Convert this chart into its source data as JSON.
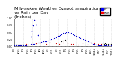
{
  "title": "Milwaukee Weather Evapotranspiration\nvs Rain per Day\n(Inches)",
  "title_fontsize": 4.5,
  "background_color": "#ffffff",
  "legend_labels": [
    "ET",
    "Rain"
  ],
  "legend_colors": [
    "#0000ff",
    "#ff0000"
  ],
  "x_labels": [
    "1/1",
    "1/15",
    "2/1",
    "2/15",
    "3/1",
    "3/15",
    "4/1",
    "4/15",
    "5/1",
    "5/15",
    "6/1",
    "6/15",
    "7/1",
    "7/15",
    "8/1",
    "8/15",
    "9/1",
    "9/15",
    "10/1",
    "10/15",
    "11/1",
    "11/15",
    "12/1",
    "12/15"
  ],
  "et_x": [
    0,
    1,
    2,
    3,
    4,
    5,
    6,
    7,
    8,
    9,
    10,
    11,
    12,
    13,
    14,
    15,
    16,
    17,
    18,
    19,
    20,
    21,
    22,
    23,
    24,
    25,
    26,
    27,
    28,
    29,
    30,
    31,
    32,
    33,
    34,
    35,
    36,
    37,
    38,
    39,
    40,
    41,
    42,
    43,
    44,
    45,
    46,
    47,
    48,
    49,
    50,
    51,
    52,
    53,
    54,
    55,
    56,
    57,
    58,
    59,
    60,
    61,
    62,
    63,
    64,
    65,
    66,
    67,
    68,
    69,
    70,
    71,
    72,
    73,
    74,
    75,
    76,
    77,
    78,
    79,
    80,
    81,
    82,
    83
  ],
  "et_y": [
    0.02,
    0.01,
    0.02,
    0.01,
    0.01,
    0.02,
    0.01,
    0.02,
    0.02,
    0.03,
    0.03,
    0.04,
    0.05,
    0.05,
    0.06,
    0.06,
    0.07,
    0.08,
    0.09,
    0.1,
    0.11,
    0.12,
    0.13,
    0.14,
    0.15,
    0.16,
    0.17,
    0.18,
    0.19,
    0.2,
    0.22,
    0.24,
    0.26,
    0.28,
    0.3,
    0.32,
    0.34,
    0.36,
    0.38,
    0.4,
    0.42,
    0.44,
    0.46,
    0.48,
    0.5,
    0.52,
    0.5,
    0.48,
    0.46,
    0.44,
    0.42,
    0.4,
    0.38,
    0.36,
    0.34,
    0.32,
    0.3,
    0.28,
    0.26,
    0.24,
    0.22,
    0.2,
    0.18,
    0.16,
    0.14,
    0.12,
    0.1,
    0.08,
    0.06,
    0.05,
    0.04,
    0.03,
    0.02,
    0.02,
    0.01,
    0.01,
    0.01,
    0.01,
    0.01,
    0.01,
    0.01,
    0.01,
    0.01,
    0.01
  ],
  "rain_x": [
    5,
    10,
    15,
    18,
    22,
    27,
    30,
    35,
    38,
    42,
    45,
    48,
    50,
    54,
    58,
    62,
    65,
    68,
    71,
    74,
    78,
    82
  ],
  "rain_y": [
    0.05,
    0.08,
    0.06,
    0.1,
    0.12,
    0.08,
    0.15,
    0.1,
    0.07,
    0.12,
    0.09,
    0.06,
    0.08,
    0.05,
    0.1,
    0.07,
    0.12,
    0.09,
    0.06,
    0.08,
    0.05,
    0.04
  ],
  "spike_x": [
    14,
    15,
    16,
    17,
    18,
    19,
    20
  ],
  "spike_y": [
    0.35,
    0.55,
    0.75,
    0.95,
    0.78,
    0.6,
    0.4
  ],
  "ylim": [
    0,
    1.0
  ],
  "xlim": [
    0,
    83
  ],
  "ylabel_fontsize": 3.5,
  "xlabel_fontsize": 3.0,
  "tick_fontsize": 2.8,
  "grid_color": "#aaaaaa",
  "et_color": "#0000cc",
  "rain_color": "#cc0000",
  "black_color": "#111111",
  "black_x": [
    0,
    1,
    2,
    3,
    4,
    5,
    6,
    7,
    8,
    9,
    40,
    41,
    42,
    43,
    44,
    75,
    76,
    77,
    78,
    79,
    80,
    81,
    82,
    83
  ],
  "black_y": [
    0.05,
    0.04,
    0.06,
    0.05,
    0.04,
    0.05,
    0.04,
    0.06,
    0.05,
    0.04,
    0.18,
    0.2,
    0.19,
    0.21,
    0.2,
    0.1,
    0.08,
    0.09,
    0.07,
    0.06,
    0.08,
    0.07,
    0.06,
    0.05
  ]
}
